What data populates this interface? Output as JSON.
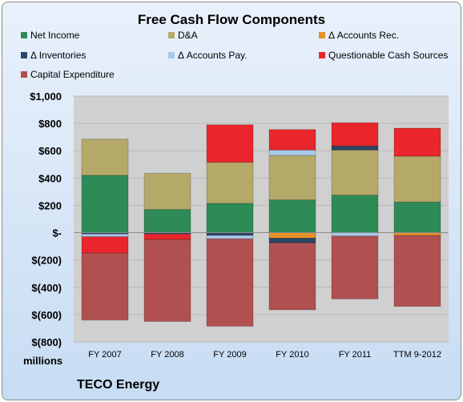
{
  "chart_data": {
    "type": "bar",
    "stacked": true,
    "title": "Free Cash Flow Components",
    "ylabel": "millions",
    "company": "TECO Energy",
    "categories": [
      "FY 2007",
      "FY 2008",
      "FY 2009",
      "FY 2010",
      "FY 2011",
      "TTM 9-2012"
    ],
    "ylim": [
      -800,
      1000
    ],
    "yticks": [
      1000,
      800,
      600,
      400,
      200,
      0,
      -200,
      -400,
      -600,
      -800
    ],
    "ytick_labels": [
      "$1,000",
      "$800",
      "$600",
      "$400",
      "$200",
      "$-",
      "$(200)",
      "$(400)",
      "$(600)",
      "$(800)"
    ],
    "grid": true,
    "legend_position": "top",
    "series": [
      {
        "name": "Net Income",
        "color": "#2e8b57",
        "values": [
          420,
          170,
          215,
          240,
          275,
          225
        ]
      },
      {
        "name": "D&A",
        "color": "#b5a96a",
        "values": [
          265,
          265,
          300,
          325,
          330,
          335
        ]
      },
      {
        "name": "Δ Accounts Rec.",
        "color": "#e8902a",
        "values": [
          0,
          0,
          0,
          -40,
          0,
          -20
        ]
      },
      {
        "name": "Δ Inventories",
        "color": "#2c4763",
        "values": [
          -10,
          -10,
          -20,
          -35,
          30,
          0
        ]
      },
      {
        "name": "Δ Accounts Pay.",
        "color": "#a9c8ea",
        "values": [
          -20,
          0,
          -25,
          40,
          -25,
          0
        ]
      },
      {
        "name": "Questionable Cash Sources",
        "color": "#e8262b",
        "values": [
          -120,
          -40,
          275,
          150,
          170,
          205
        ]
      },
      {
        "name": "Capital Expenditure",
        "color": "#b05050",
        "values": [
          -490,
          -600,
          -640,
          -490,
          -460,
          -520
        ]
      }
    ]
  }
}
